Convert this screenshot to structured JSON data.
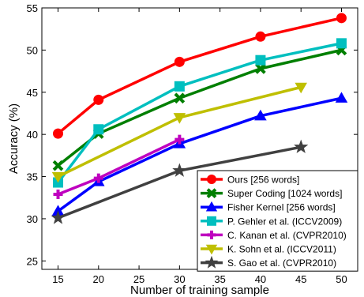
{
  "chart_data": {
    "type": "line",
    "title": "",
    "xlabel": "Number of training sample",
    "ylabel": "Accuracy (%)",
    "xlim": [
      13,
      52
    ],
    "ylim": [
      24,
      55
    ],
    "xticks": [
      15,
      20,
      25,
      30,
      35,
      40,
      45,
      50
    ],
    "yticks": [
      25,
      30,
      35,
      40,
      45,
      50,
      55
    ],
    "grid": false,
    "legend_position": "bottom-right",
    "series": [
      {
        "name": "Ours [256 words]",
        "color": "#ff0000",
        "marker": "circle",
        "x": [
          15,
          20,
          30,
          40,
          50
        ],
        "y": [
          40.1,
          44.1,
          48.6,
          51.6,
          53.8
        ]
      },
      {
        "name": "Super Coding [1024 words]",
        "color": "#007f00",
        "marker": "x",
        "x": [
          15,
          20,
          30,
          40,
          50
        ],
        "y": [
          36.3,
          40.1,
          44.3,
          47.8,
          50.0
        ]
      },
      {
        "name": "Fisher Kernel [256 words]",
        "color": "#0000ff",
        "marker": "triangle-up",
        "x": [
          15,
          20,
          30,
          40,
          50
        ],
        "y": [
          30.9,
          34.4,
          38.9,
          42.2,
          44.3
        ]
      },
      {
        "name": "P. Gehler et al. (ICCV2009)",
        "color": "#00bfbf",
        "marker": "square",
        "x": [
          15,
          20,
          30,
          40,
          50
        ],
        "y": [
          34.3,
          40.6,
          45.7,
          48.8,
          50.8
        ]
      },
      {
        "name": "C. Kanan et al. (CVPR2010)",
        "color": "#bf00bf",
        "marker": "plus",
        "x": [
          15,
          20,
          30
        ],
        "y": [
          32.9,
          34.8,
          39.4
        ]
      },
      {
        "name": "K. Sohn et al. (ICCV2011)",
        "color": "#bfbf00",
        "marker": "triangle-down",
        "x": [
          15,
          30,
          45
        ],
        "y": [
          35.0,
          42.0,
          45.6
        ]
      },
      {
        "name": "S. Gao et al. (CVPR2010)",
        "color": "#404040",
        "marker": "star",
        "x": [
          15,
          30,
          45
        ],
        "y": [
          30.1,
          35.7,
          38.5
        ]
      }
    ]
  }
}
